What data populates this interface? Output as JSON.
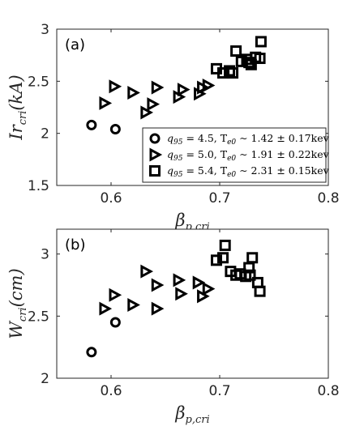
{
  "chart_data": [
    {
      "type": "scatter",
      "panel_label": "(a)",
      "xlabel": {
        "main": "β",
        "sub": "p,cri"
      },
      "ylabel": {
        "main": "Ir",
        "sub": "cri",
        "suffix": "(kA)"
      },
      "xlim": [
        0.55,
        0.8
      ],
      "ylim": [
        1.5,
        3
      ],
      "xticks": [
        0.6,
        0.7,
        0.8
      ],
      "xtick_labels": [
        "0.6",
        "0.7",
        "0.8"
      ],
      "yticks": [
        1.5,
        2,
        2.5,
        3
      ],
      "ytick_labels": [
        "1.5",
        "2",
        "2.5",
        "3"
      ],
      "legend_position": "bottom-right",
      "series": [
        {
          "marker": "circle",
          "legend": {
            "q": "q",
            "qsub": "95",
            "rest": "= 4.5, T",
            "tsub": "e0",
            "range": "∼ 1.42 ± 0.17kev"
          },
          "points": [
            [
              0.582,
              2.08
            ],
            [
              0.604,
              2.04
            ]
          ]
        },
        {
          "marker": "triangle-right",
          "legend": {
            "q": "q",
            "qsub": "95",
            "rest": "= 5.0, T",
            "tsub": "e0",
            "range": "∼ 1.91 ± 0.22kev"
          },
          "points": [
            [
              0.594,
              2.29
            ],
            [
              0.603,
              2.45
            ],
            [
              0.62,
              2.39
            ],
            [
              0.632,
              2.2
            ],
            [
              0.638,
              2.28
            ],
            [
              0.642,
              2.44
            ],
            [
              0.662,
              2.35
            ],
            [
              0.666,
              2.42
            ],
            [
              0.681,
              2.38
            ],
            [
              0.684,
              2.44
            ],
            [
              0.689,
              2.46
            ]
          ]
        },
        {
          "marker": "square",
          "legend": {
            "q": "q",
            "qsub": "95",
            "rest": "= 5.4, T",
            "tsub": "e0",
            "range": "∼ 2.31 ± 0.15kev"
          },
          "points": [
            [
              0.697,
              2.62
            ],
            [
              0.703,
              2.58
            ],
            [
              0.709,
              2.6
            ],
            [
              0.712,
              2.58
            ],
            [
              0.715,
              2.79
            ],
            [
              0.72,
              2.69
            ],
            [
              0.725,
              2.71
            ],
            [
              0.727,
              2.68
            ],
            [
              0.729,
              2.66
            ],
            [
              0.733,
              2.73
            ],
            [
              0.737,
              2.72
            ],
            [
              0.738,
              2.88
            ]
          ]
        }
      ]
    },
    {
      "type": "scatter",
      "panel_label": "(b)",
      "xlabel": {
        "main": "β",
        "sub": "p,cri"
      },
      "ylabel": {
        "main": "W",
        "sub": "cri",
        "suffix": "(cm)"
      },
      "xlim": [
        0.55,
        0.8
      ],
      "ylim": [
        2,
        3.2
      ],
      "xticks": [
        0.6,
        0.7,
        0.8
      ],
      "xtick_labels": [
        "0.6",
        "0.7",
        "0.8"
      ],
      "yticks": [
        2,
        2.5,
        3
      ],
      "ytick_labels": [
        "2",
        "2.5",
        "3"
      ],
      "series": [
        {
          "marker": "circle",
          "points": [
            [
              0.582,
              2.21
            ],
            [
              0.604,
              2.45
            ]
          ]
        },
        {
          "marker": "triangle-right",
          "points": [
            [
              0.594,
              2.56
            ],
            [
              0.603,
              2.67
            ],
            [
              0.62,
              2.59
            ],
            [
              0.632,
              2.86
            ],
            [
              0.642,
              2.56
            ],
            [
              0.642,
              2.75
            ],
            [
              0.662,
              2.79
            ],
            [
              0.664,
              2.68
            ],
            [
              0.68,
              2.77
            ],
            [
              0.684,
              2.66
            ],
            [
              0.689,
              2.72
            ]
          ]
        },
        {
          "marker": "square",
          "points": [
            [
              0.697,
              2.95
            ],
            [
              0.703,
              2.97
            ],
            [
              0.705,
              3.07
            ],
            [
              0.71,
              2.86
            ],
            [
              0.715,
              2.83
            ],
            [
              0.719,
              2.84
            ],
            [
              0.724,
              2.82
            ],
            [
              0.727,
              2.89
            ],
            [
              0.728,
              2.83
            ],
            [
              0.73,
              2.97
            ],
            [
              0.735,
              2.77
            ],
            [
              0.737,
              2.7
            ]
          ]
        }
      ]
    }
  ]
}
